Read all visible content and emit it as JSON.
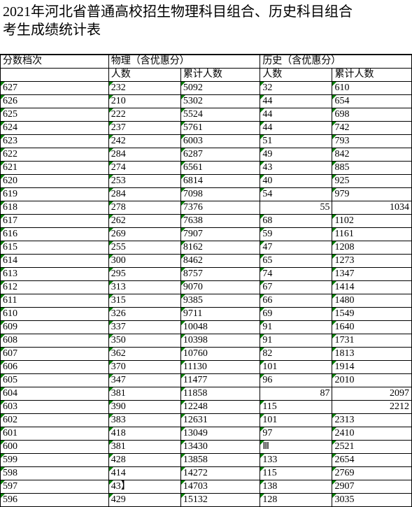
{
  "title_line1": "2021年河北省普通高校招生物理科目组合、历史科目组合",
  "title_line2": "考生成绩统计表",
  "headers": {
    "score": "分数档次",
    "physics": "物理（含优惠分）",
    "history": "历史（含优惠分）",
    "count": "人数",
    "cum": "累计人数"
  },
  "styles": {
    "green_marker_color": "#008000",
    "border_color": "#000000",
    "bg": "#ffffff",
    "title_fontsize": 20,
    "cell_fontsize": 14
  },
  "rows": [
    {
      "score": "627",
      "pn": "232",
      "pc": "5092",
      "hn": "32",
      "hc": "610"
    },
    {
      "score": "626",
      "pn": "210",
      "pc": "5302",
      "hn": "44",
      "hc": "654"
    },
    {
      "score": "625",
      "pn": "222",
      "pc": "5524",
      "hn": "44",
      "hc": "698"
    },
    {
      "score": "624",
      "pn": "237",
      "pc": "5761",
      "hn": "44",
      "hc": "742"
    },
    {
      "score": "623",
      "pn": "242",
      "pc": "6003",
      "hn": "51",
      "hc": "793"
    },
    {
      "score": "622",
      "pn": "284",
      "pc": "6287",
      "hn": "49",
      "hc": "842"
    },
    {
      "score": "621",
      "pn": "274",
      "pc": "6561",
      "hn": "43",
      "hc": "885"
    },
    {
      "score": "620",
      "pn": "253",
      "pc": "6814",
      "hn": "40",
      "hc": "925"
    },
    {
      "score": "619",
      "pn": "284",
      "pc": "7098",
      "hn": "54",
      "hc": "979"
    },
    {
      "score": "618",
      "pn": "278",
      "pc": "7376",
      "hn": "55",
      "hc": "1034",
      "alt": true
    },
    {
      "score": "617",
      "pn": "262",
      "pc": "7638",
      "hn": "68",
      "hc": "1102"
    },
    {
      "score": "616",
      "pn": "269",
      "pc": "7907",
      "hn": "59",
      "hc": "1161"
    },
    {
      "score": "615",
      "pn": "255",
      "pc": "8162",
      "hn": "47",
      "hc": "1208"
    },
    {
      "score": "614",
      "pn": "300",
      "pc": "8462",
      "hn": "65",
      "hc": "1273"
    },
    {
      "score": "613",
      "pn": "295",
      "pc": "8757",
      "hn": "74",
      "hc": "1347"
    },
    {
      "score": "612",
      "pn": "313",
      "pc": "9070",
      "hn": "67",
      "hc": "1414"
    },
    {
      "score": "611",
      "pn": "315",
      "pc": "9385",
      "hn": "66",
      "hc": "1480"
    },
    {
      "score": "610",
      "pn": "326",
      "pc": "9711",
      "hn": "69",
      "hc": "1549"
    },
    {
      "score": "609",
      "pn": "337",
      "pc": "10048",
      "hn": "91",
      "hc": "1640"
    },
    {
      "score": "608",
      "pn": "350",
      "pc": "10398",
      "hn": "91",
      "hc": "1731"
    },
    {
      "score": "607",
      "pn": "362",
      "pc": "10760",
      "hn": "82",
      "hc": "1813"
    },
    {
      "score": "606",
      "pn": "370",
      "pc": "11130",
      "hn": "101",
      "hc": "1914"
    },
    {
      "score": "605",
      "pn": "347",
      "pc": "11477",
      "hn": "96",
      "hc": "2010"
    },
    {
      "score": "604",
      "pn": "381",
      "pc": "11858",
      "hn": "87",
      "hc": "2097",
      "alt": true
    },
    {
      "score": "603",
      "pn": "390",
      "pc": "12248",
      "hn": "115",
      "hc": "2212",
      "alt": true,
      "hn_gm": true
    },
    {
      "score": "602",
      "pn": "383",
      "pc": "12631",
      "hn": "101",
      "hc": "2313"
    },
    {
      "score": "601",
      "pn": "418",
      "pc": "13049",
      "hn": "97",
      "hc": "2410"
    },
    {
      "score": "600",
      "pn": "381",
      "pc": "13430",
      "hn": "Ⅲ",
      "hc": "2521",
      "hn_gm": true
    },
    {
      "score": "599",
      "pn": "428",
      "pc": "13858",
      "hn": "133",
      "hc": "2654"
    },
    {
      "score": "598",
      "pn": "414",
      "pc": "14272",
      "hn": "115",
      "hc": "2769"
    },
    {
      "score": "597",
      "pn": "43】",
      "pc": "14703",
      "hn": "138",
      "hc": "2907"
    },
    {
      "score": "596",
      "pn": "429",
      "pc": "15132",
      "hn": "128",
      "hc": "3035"
    }
  ]
}
